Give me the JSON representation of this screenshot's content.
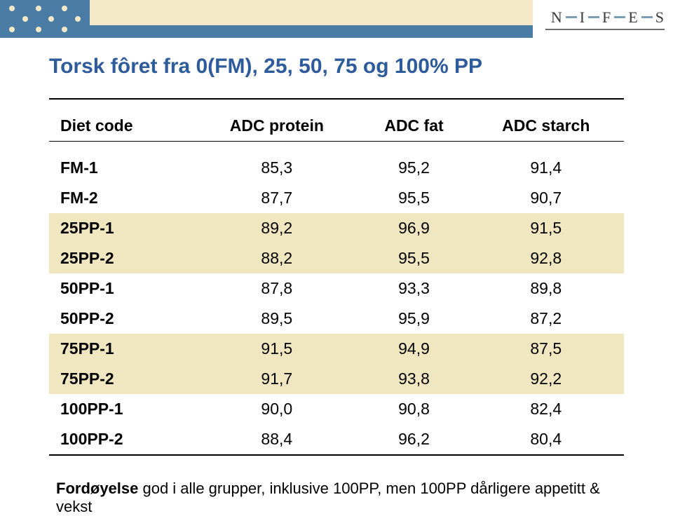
{
  "colors": {
    "dots_bg": "#4b7ca5",
    "dot": "#f3e9c8",
    "band_cream": "#f3e9c8",
    "band_blue": "#4b7ca5",
    "title": "#2e5b9c",
    "row_band": "#f0e6c0"
  },
  "logo": {
    "letters": [
      "N",
      "I",
      "F",
      "E",
      "S"
    ]
  },
  "title": "Torsk fôret fra 0(FM), 25, 50, 75 og 100% PP",
  "table": {
    "headers": [
      "Diet code",
      "ADC protein",
      "ADC fat",
      "ADC starch"
    ],
    "rows": [
      {
        "cells": [
          "FM-1",
          "85,3",
          "95,2",
          "91,4"
        ],
        "band": false
      },
      {
        "cells": [
          "FM-2",
          "87,7",
          "95,5",
          "90,7"
        ],
        "band": false
      },
      {
        "cells": [
          "25PP-1",
          "89,2",
          "96,9",
          "91,5"
        ],
        "band": true
      },
      {
        "cells": [
          "25PP-2",
          "88,2",
          "95,5",
          "92,8"
        ],
        "band": true
      },
      {
        "cells": [
          "50PP-1",
          "87,8",
          "93,3",
          "89,8"
        ],
        "band": false
      },
      {
        "cells": [
          "50PP-2",
          "89,5",
          "95,9",
          "87,2"
        ],
        "band": false
      },
      {
        "cells": [
          "75PP-1",
          "91,5",
          "94,9",
          "87,5"
        ],
        "band": true
      },
      {
        "cells": [
          "75PP-2",
          "91,7",
          "93,8",
          "92,2"
        ],
        "band": true
      },
      {
        "cells": [
          "100PP-1",
          "90,0",
          "90,8",
          "82,4"
        ],
        "band": false
      },
      {
        "cells": [
          "100PP-2",
          "88,4",
          "96,2",
          "80,4"
        ],
        "band": false
      }
    ]
  },
  "footnote": {
    "bold": "Fordøyelse",
    "rest": " god i alle grupper, inklusive 100PP, men 100PP dårligere appetitt & vekst"
  },
  "dot_pattern": [
    [
      1,
      0,
      1,
      0,
      1,
      0
    ],
    [
      0,
      1,
      0,
      1,
      0,
      1
    ],
    [
      1,
      0,
      1,
      0,
      1,
      0
    ]
  ]
}
